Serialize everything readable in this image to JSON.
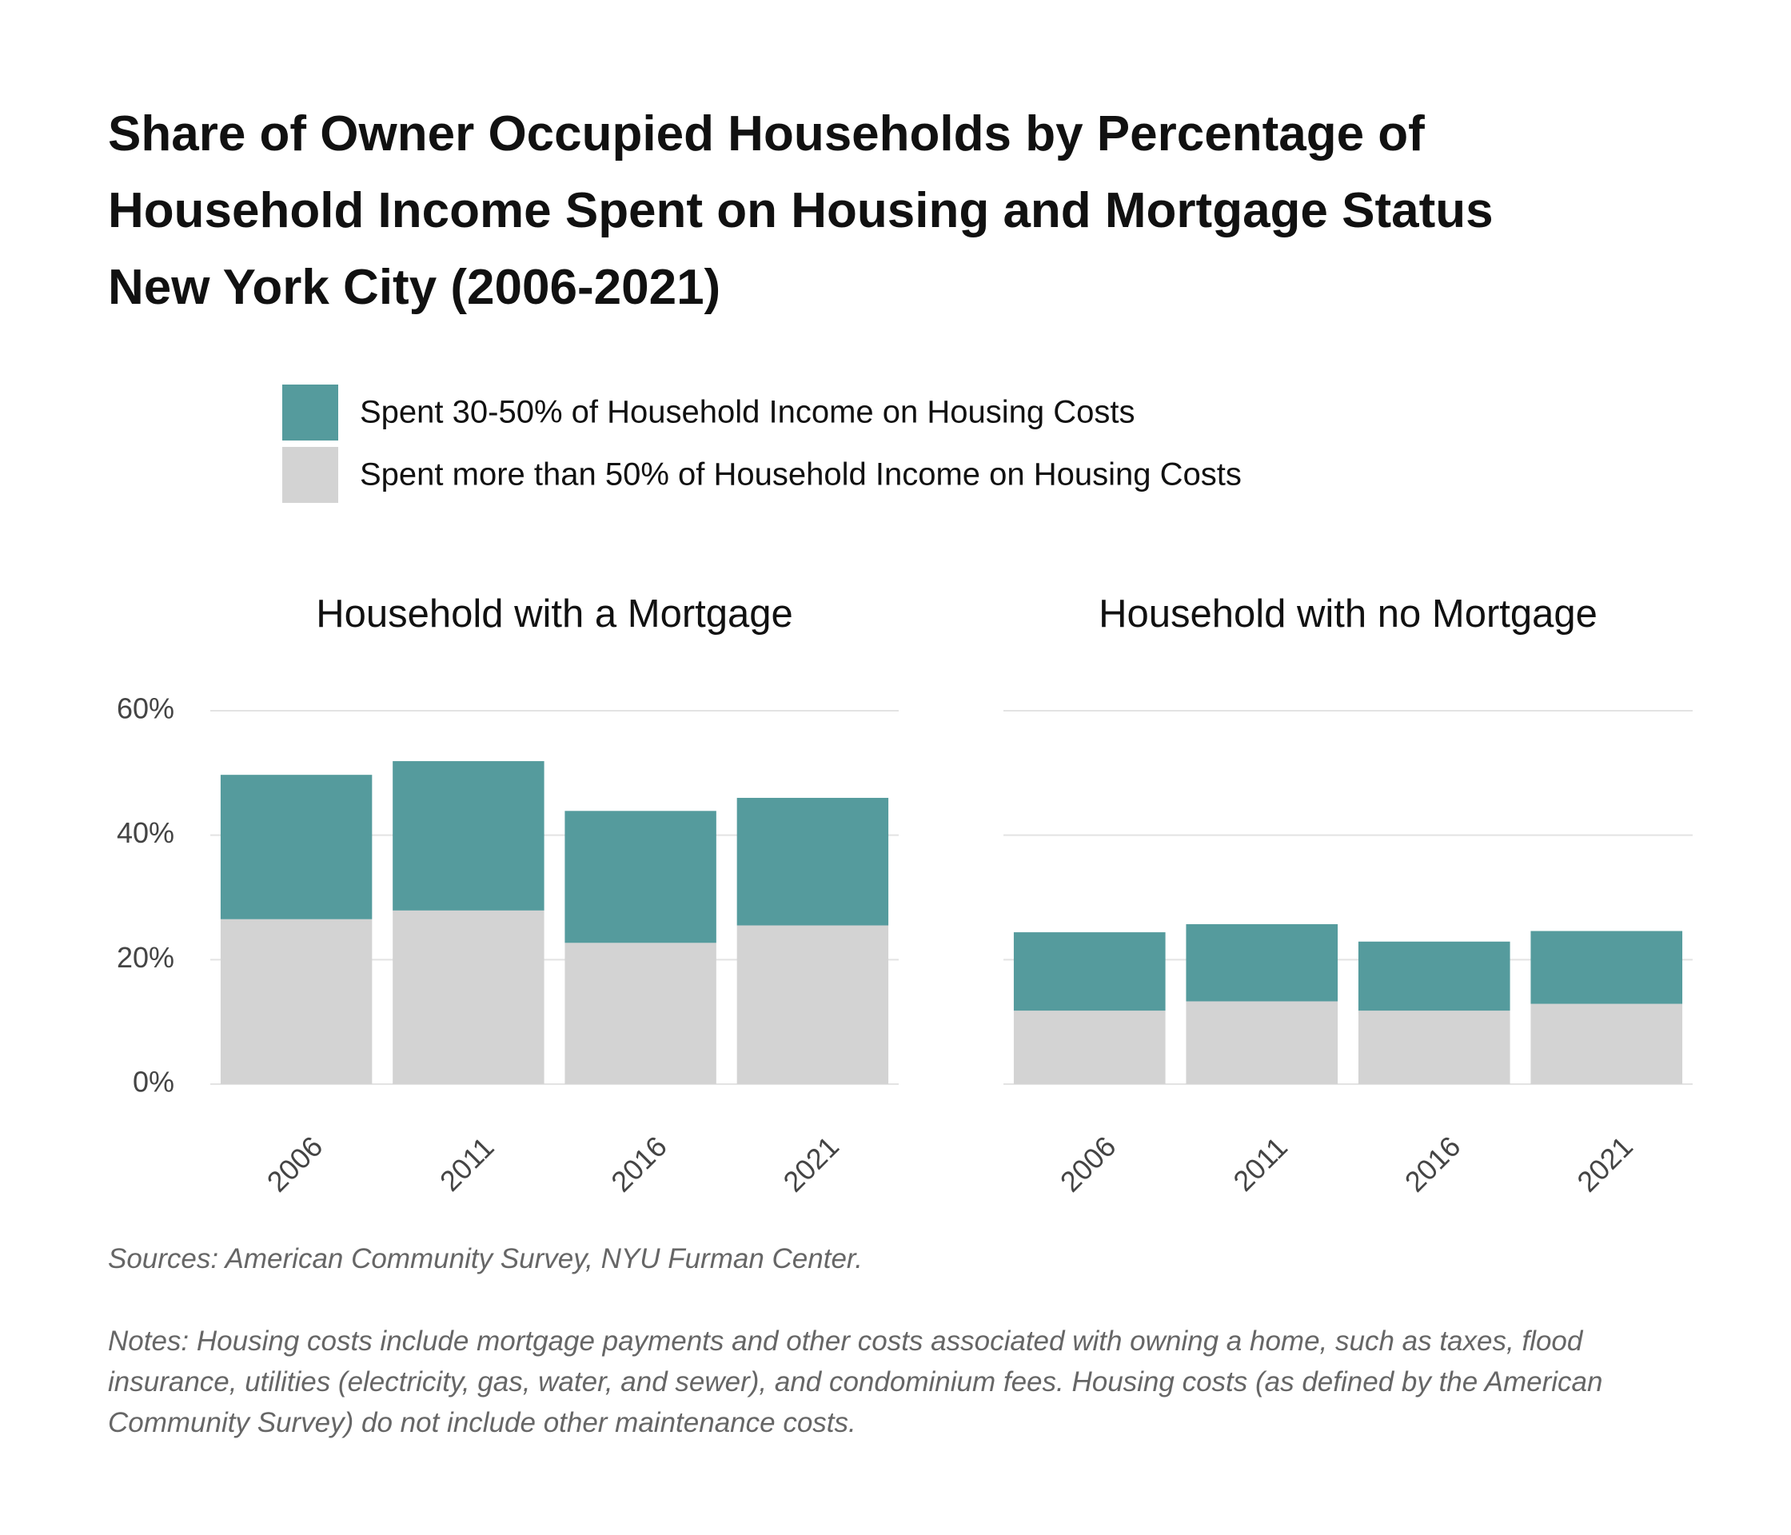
{
  "title": [
    "Share of Owner Occupied Households by Percentage of",
    "Household Income Spent on Housing and Mortgage Status",
    "New York City (2006-2021)"
  ],
  "sources": "Sources: American Community Survey, NYU Furman Center.",
  "notes": "Notes: Housing costs include mortgage payments and other costs associated with owning a home, such as taxes, flood insurance, utilities (electricity, gas, water, and sewer), and condominium fees. Housing costs (as defined by the American Community Survey) do not include other maintenance costs.",
  "chart_data": [
    {
      "type": "stacked_bar",
      "title": "Household with a Mortgage",
      "categories": [
        "2006",
        "2011",
        "2016",
        "2021"
      ],
      "series": [
        {
          "name": "Spent 30-50% of Household Income on Housing Costs",
          "color": "#559b9d",
          "values": [
            23.2,
            24.0,
            21.2,
            20.5
          ]
        },
        {
          "name": "Spent more than 50% of Household Income on Housing Costs",
          "color": "#d3d3d3",
          "values": [
            26.5,
            27.9,
            22.7,
            25.5
          ]
        }
      ],
      "ylim": [
        0,
        60
      ],
      "yticks": [
        {
          "value": 0,
          "label": "0%"
        },
        {
          "value": 20,
          "label": "20%"
        },
        {
          "value": 40,
          "label": "40%"
        },
        {
          "value": 60,
          "label": "60%"
        }
      ],
      "grid": true
    },
    {
      "type": "stacked_bar",
      "title": "Household with no Mortgage",
      "categories": [
        "2006",
        "2011",
        "2016",
        "2021"
      ],
      "series": [
        {
          "color": "#559b9d",
          "values": [
            12.6,
            12.4,
            11.1,
            11.7
          ]
        },
        {
          "color": "#d3d3d3",
          "values": [
            11.8,
            13.3,
            11.8,
            12.9
          ]
        }
      ],
      "ylim": [
        0,
        60
      ],
      "yticks": [
        0,
        20,
        40,
        60
      ],
      "grid": true
    }
  ]
}
